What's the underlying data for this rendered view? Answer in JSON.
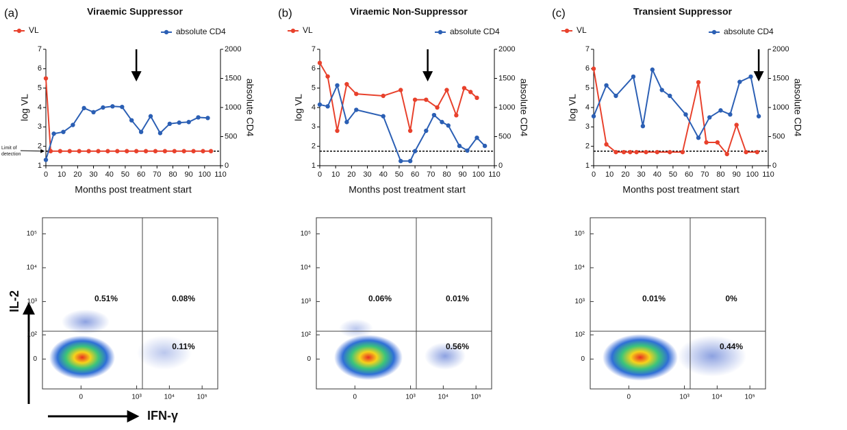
{
  "chart_data": [
    {
      "type": "line",
      "panel": "(a)",
      "title": "Viraemic Suppressor",
      "xlabel": "Months post treatment start",
      "ylabel": "log VL",
      "y2label": "absolute CD4",
      "annotation": [
        "Limit of",
        "detection"
      ],
      "xlim": [
        0,
        110
      ],
      "xticks": [
        0,
        10,
        20,
        30,
        40,
        50,
        60,
        70,
        80,
        90,
        100,
        110
      ],
      "ylim": [
        1,
        7
      ],
      "yticks": [
        1,
        2,
        3,
        4,
        5,
        6,
        7
      ],
      "y2lim": [
        0,
        2000
      ],
      "y2ticks": [
        0,
        500,
        1000,
        1500,
        2000
      ],
      "reference_line": 1.75,
      "arrow_x": 57,
      "series": [
        {
          "name": "VL",
          "color": "#e8412c",
          "x": [
            0,
            3,
            9,
            15,
            21,
            27,
            33,
            39,
            45,
            51,
            57,
            63,
            69,
            75,
            81,
            87,
            93,
            99,
            104
          ],
          "values": [
            5.5,
            1.75,
            1.75,
            1.75,
            1.75,
            1.75,
            1.75,
            1.75,
            1.75,
            1.75,
            1.75,
            1.75,
            1.75,
            1.75,
            1.75,
            1.75,
            1.75,
            1.75,
            1.75
          ]
        },
        {
          "name": "absolute CD4",
          "color": "#2b5fb4",
          "axis": "y2",
          "x": [
            0,
            5,
            11,
            17,
            24,
            30,
            36,
            42,
            48,
            54,
            60,
            66,
            72,
            78,
            84,
            90,
            96,
            102
          ],
          "values": [
            100,
            550,
            580,
            700,
            990,
            920,
            1000,
            1020,
            1010,
            780,
            580,
            850,
            560,
            720,
            740,
            750,
            830,
            820
          ]
        }
      ]
    },
    {
      "type": "line",
      "panel": "(b)",
      "title": "Viraemic Non-Suppressor",
      "xlabel": "Months post treatment start",
      "ylabel": "log VL",
      "y2label": "absolute CD4",
      "xlim": [
        0,
        110
      ],
      "xticks": [
        0,
        10,
        20,
        30,
        40,
        50,
        60,
        70,
        80,
        90,
        100,
        110
      ],
      "ylim": [
        1,
        7
      ],
      "yticks": [
        1,
        2,
        3,
        4,
        5,
        6,
        7
      ],
      "y2lim": [
        0,
        2000
      ],
      "y2ticks": [
        0,
        500,
        1000,
        1500,
        2000
      ],
      "reference_line": 1.75,
      "arrow_x": 68,
      "series": [
        {
          "name": "VL",
          "color": "#e8412c",
          "x": [
            0,
            5,
            11,
            17,
            23,
            40,
            51,
            57,
            60,
            67,
            74,
            80,
            86,
            91,
            95,
            99
          ],
          "values": [
            6.3,
            5.6,
            2.8,
            5.2,
            4.7,
            4.6,
            4.9,
            2.8,
            4.4,
            4.4,
            4.0,
            4.9,
            3.6,
            5.0,
            4.8,
            4.5
          ]
        },
        {
          "name": "absolute CD4",
          "color": "#2b5fb4",
          "axis": "y2",
          "x": [
            0,
            5,
            11,
            17,
            23,
            40,
            51,
            57,
            60,
            67,
            72,
            77,
            81,
            88,
            93,
            99,
            104
          ],
          "values": [
            1050,
            1020,
            1380,
            750,
            960,
            850,
            80,
            80,
            250,
            600,
            870,
            750,
            690,
            340,
            260,
            480,
            340
          ]
        }
      ]
    },
    {
      "type": "line",
      "panel": "(c)",
      "title": "Transient Suppressor",
      "xlabel": "Months post treatment start",
      "ylabel": "log VL",
      "y2label": "absolute CD4",
      "xlim": [
        0,
        110
      ],
      "xticks": [
        0,
        10,
        20,
        30,
        40,
        50,
        60,
        70,
        80,
        90,
        100,
        110
      ],
      "ylim": [
        1,
        7
      ],
      "yticks": [
        1,
        2,
        3,
        4,
        5,
        6,
        7
      ],
      "y2lim": [
        0,
        2000
      ],
      "y2ticks": [
        0,
        500,
        1000,
        1500,
        2000
      ],
      "reference_line": 1.75,
      "arrow_x": 104,
      "series": [
        {
          "name": "VL",
          "color": "#e8412c",
          "x": [
            0,
            8,
            14,
            19,
            23,
            27,
            33,
            40,
            48,
            56,
            66,
            71,
            78,
            84,
            90,
            96,
            103
          ],
          "values": [
            6.0,
            2.1,
            1.7,
            1.7,
            1.7,
            1.7,
            1.7,
            1.7,
            1.7,
            1.7,
            5.3,
            2.2,
            2.2,
            1.6,
            3.1,
            1.7,
            1.7
          ]
        },
        {
          "name": "absolute CD4",
          "color": "#2b5fb4",
          "axis": "y2",
          "x": [
            0,
            8,
            14,
            25,
            31,
            37,
            43,
            48,
            58,
            66,
            73,
            80,
            86,
            92,
            99,
            104
          ],
          "values": [
            850,
            1380,
            1200,
            1530,
            680,
            1650,
            1300,
            1200,
            880,
            480,
            830,
            950,
            880,
            1440,
            1530,
            850
          ]
        }
      ]
    },
    {
      "type": "flow",
      "xlabel": "IFN-γ",
      "ylabel": "IL-2",
      "xlim": [
        -300,
        300000
      ],
      "ylim": [
        -150,
        300000
      ],
      "xticks": [
        0,
        {
          "value": 1000,
          "label": "10³"
        },
        {
          "value": 10000,
          "label": "10⁴"
        },
        {
          "value": 100000,
          "label": "10⁵"
        }
      ],
      "yticks": [
        0,
        {
          "value": 100,
          "label": "10²"
        },
        {
          "value": 1000,
          "label": "10³"
        },
        {
          "value": 10000,
          "label": "10⁴"
        },
        {
          "value": 100000,
          "label": "10⁵"
        }
      ],
      "x_gate": 1500,
      "y_gate": 130,
      "values": [
        0.51,
        0.08,
        0.11
      ],
      "value_labels": [
        "0.51%",
        "0.08%",
        "0.11%"
      ]
    },
    {
      "type": "flow",
      "xlim": [
        -300,
        300000
      ],
      "ylim": [
        -150,
        300000
      ],
      "xticks": [
        0,
        {
          "value": 1000,
          "label": "10³"
        },
        {
          "value": 10000,
          "label": "10⁴"
        },
        {
          "value": 100000,
          "label": "10⁵"
        }
      ],
      "yticks": [
        0,
        {
          "value": 100,
          "label": "10²"
        },
        {
          "value": 1000,
          "label": "10³"
        },
        {
          "value": 10000,
          "label": "10⁴"
        },
        {
          "value": 100000,
          "label": "10⁵"
        }
      ],
      "x_gate": 1500,
      "y_gate": 130,
      "values": [
        0.06,
        0.01,
        0.56
      ],
      "value_labels": [
        "0.06%",
        "0.01%",
        "0.56%"
      ]
    },
    {
      "type": "flow",
      "xlim": [
        -300,
        300000
      ],
      "ylim": [
        -150,
        300000
      ],
      "xticks": [
        0,
        {
          "value": 1000,
          "label": "10³"
        },
        {
          "value": 10000,
          "label": "10⁴"
        },
        {
          "value": 100000,
          "label": "10⁵"
        }
      ],
      "yticks": [
        0,
        {
          "value": 100,
          "label": "10²"
        },
        {
          "value": 1000,
          "label": "10³"
        },
        {
          "value": 10000,
          "label": "10⁴"
        },
        {
          "value": 100000,
          "label": "10⁵"
        }
      ],
      "x_gate": 1500,
      "y_gate": 130,
      "values": [
        0.01,
        0,
        0.44
      ],
      "value_labels": [
        "0.01%",
        "0%",
        "0.44%"
      ]
    }
  ]
}
